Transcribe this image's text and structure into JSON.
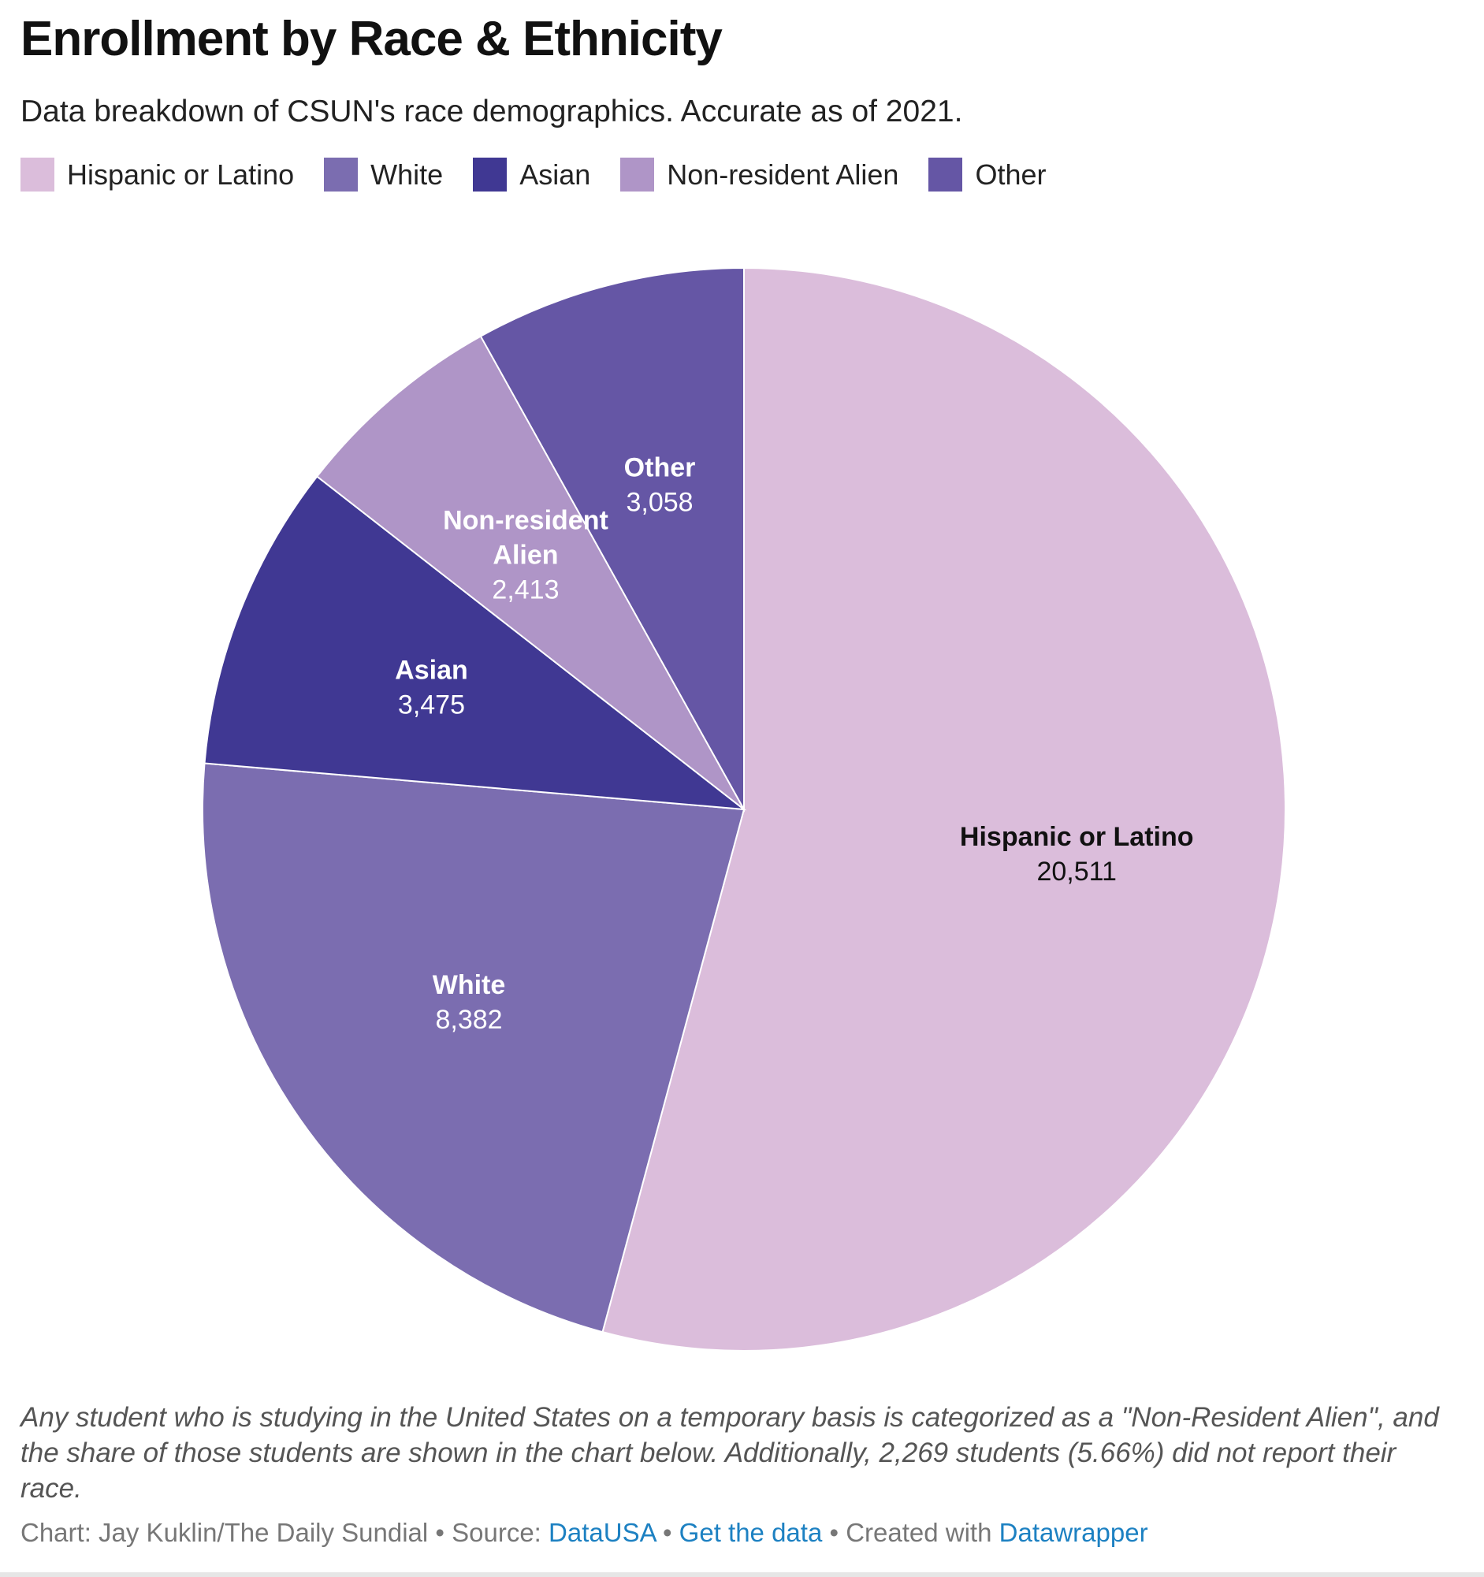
{
  "chart_data": {
    "type": "pie",
    "title": "Enrollment by Race & Ethnicity",
    "subtitle": "Data breakdown of CSUN's race demographics. Accurate as of 2021.",
    "legend_position": "top-left",
    "start_angle": "12 o'clock, clockwise",
    "slices": [
      {
        "label": "Hispanic or Latino",
        "value": 20511,
        "display": "20,511",
        "color": "#dbbddb",
        "text_color": "#111111"
      },
      {
        "label": "White",
        "value": 8382,
        "display": "8,382",
        "color": "#7b6db0",
        "text_color": "#ffffff"
      },
      {
        "label": "Asian",
        "value": 3475,
        "display": "3,475",
        "color": "#403893",
        "text_color": "#ffffff"
      },
      {
        "label": "Non-resident Alien",
        "value": 2413,
        "display": "2,413",
        "color": "#af95c7",
        "text_color": "#ffffff",
        "label_lines": [
          "Non-resident",
          "Alien"
        ]
      },
      {
        "label": "Other",
        "value": 3058,
        "display": "3,058",
        "color": "#6556a5",
        "text_color": "#ffffff"
      }
    ]
  },
  "notes": "Any student who is studying in the United States on a temporary basis is categorized as a \"Non-Resident Alien\", and the share of those students are shown in the chart below. Additionally, 2,269 students (5.66%) did not report their race.",
  "credits": {
    "prefix": "Chart: Jay Kuklin/The Daily Sundial • Source: ",
    "source_link": "DataUSA",
    "sep1": " • ",
    "data_link": "Get the data",
    "sep2": " • Created with ",
    "tool_link": "Datawrapper"
  }
}
